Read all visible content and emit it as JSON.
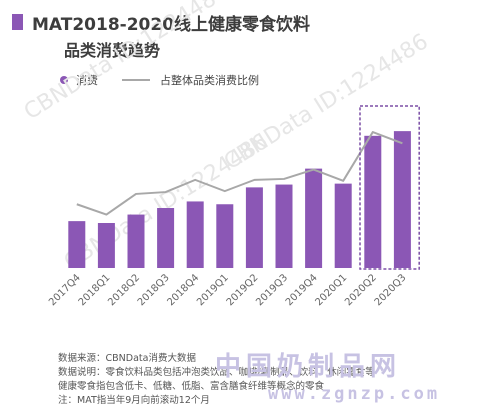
{
  "title": {
    "line1": "MAT2018-2020线上健康零食饮料",
    "line2": "品类消费趋势"
  },
  "legend": {
    "bar_label": "消费",
    "line_label": "占整体品类消费比例"
  },
  "colors": {
    "bar": "#8b57b5",
    "line": "#a8a8a8",
    "highlight_border": "#7b4fa6"
  },
  "chart_data": {
    "type": "bar",
    "categories": [
      "2017Q4",
      "2018Q1",
      "2018Q2",
      "2018Q3",
      "2018Q4",
      "2019Q1",
      "2019Q2",
      "2019Q3",
      "2019Q4",
      "2020Q1",
      "2020Q2",
      "2020Q3"
    ],
    "series": [
      {
        "name": "消费",
        "type": "bar",
        "values": [
          50,
          48,
          57,
          64,
          71,
          68,
          86,
          89,
          106,
          90,
          141,
          146
        ]
      },
      {
        "name": "占整体品类消费比例",
        "type": "line",
        "values": [
          68,
          57,
          79,
          81,
          94,
          82,
          94,
          95,
          105,
          93,
          145,
          133
        ]
      }
    ],
    "highlighted_categories": [
      "2020Q2",
      "2020Q3"
    ],
    "ylim": [
      0,
      160
    ],
    "grid": false,
    "legend_position": "top-left",
    "title": "MAT2018-2020线上健康零食饮料品类消费趋势",
    "xlabel": "",
    "ylabel": ""
  },
  "notes": [
    "数据来源：CBNData消费大数据",
    "数据说明：零食饮料品类包括冲泡类饮品、咖啡/乳制品、饮料、休闲零食等",
    "健康零食指包含低卡、低糖、低脂、富含膳食纤维等概念的零食",
    "注：MAT指当年9月向前滚动12个月"
  ],
  "watermark": {
    "cn": "中国奶制品网",
    "url": "www.zgnzp.com",
    "diagonal": "CBNData ID:1224486"
  }
}
